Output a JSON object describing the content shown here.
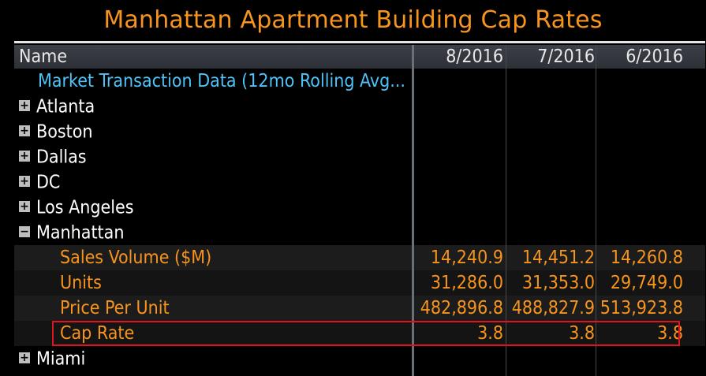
{
  "title": "Manhattan Apartment Building Cap Rates",
  "header": {
    "name": "Name",
    "columns": [
      "8/2016",
      "7/2016",
      "6/2016"
    ]
  },
  "market_label": "Market Transaction Data (12mo Rolling Avg...",
  "cities": {
    "atlanta": "Atlanta",
    "boston": "Boston",
    "dallas": "Dallas",
    "dc": "DC",
    "los_angeles": "Los Angeles",
    "manhattan": "Manhattan",
    "miami": "Miami"
  },
  "toggles": {
    "collapsed": "+",
    "expanded": "−"
  },
  "manhattan_rows": {
    "sales_volume": {
      "label": "Sales Volume ($M)",
      "values": [
        "14,240.9",
        "14,451.2",
        "14,260.8"
      ]
    },
    "units": {
      "label": "Units",
      "values": [
        "31,286.0",
        "31,353.0",
        "29,749.0"
      ]
    },
    "price_per_unit": {
      "label": "Price Per Unit",
      "values": [
        "482,896.8",
        "488,827.9",
        "513,923.8"
      ]
    },
    "cap_rate": {
      "label": "Cap Rate",
      "values": [
        "3.8",
        "3.8",
        "3.8"
      ]
    }
  },
  "colors": {
    "title": "#f7941d",
    "market_label": "#4fc3f7",
    "sub_rows": "#f7941d",
    "highlight_box": "#e0141e"
  }
}
